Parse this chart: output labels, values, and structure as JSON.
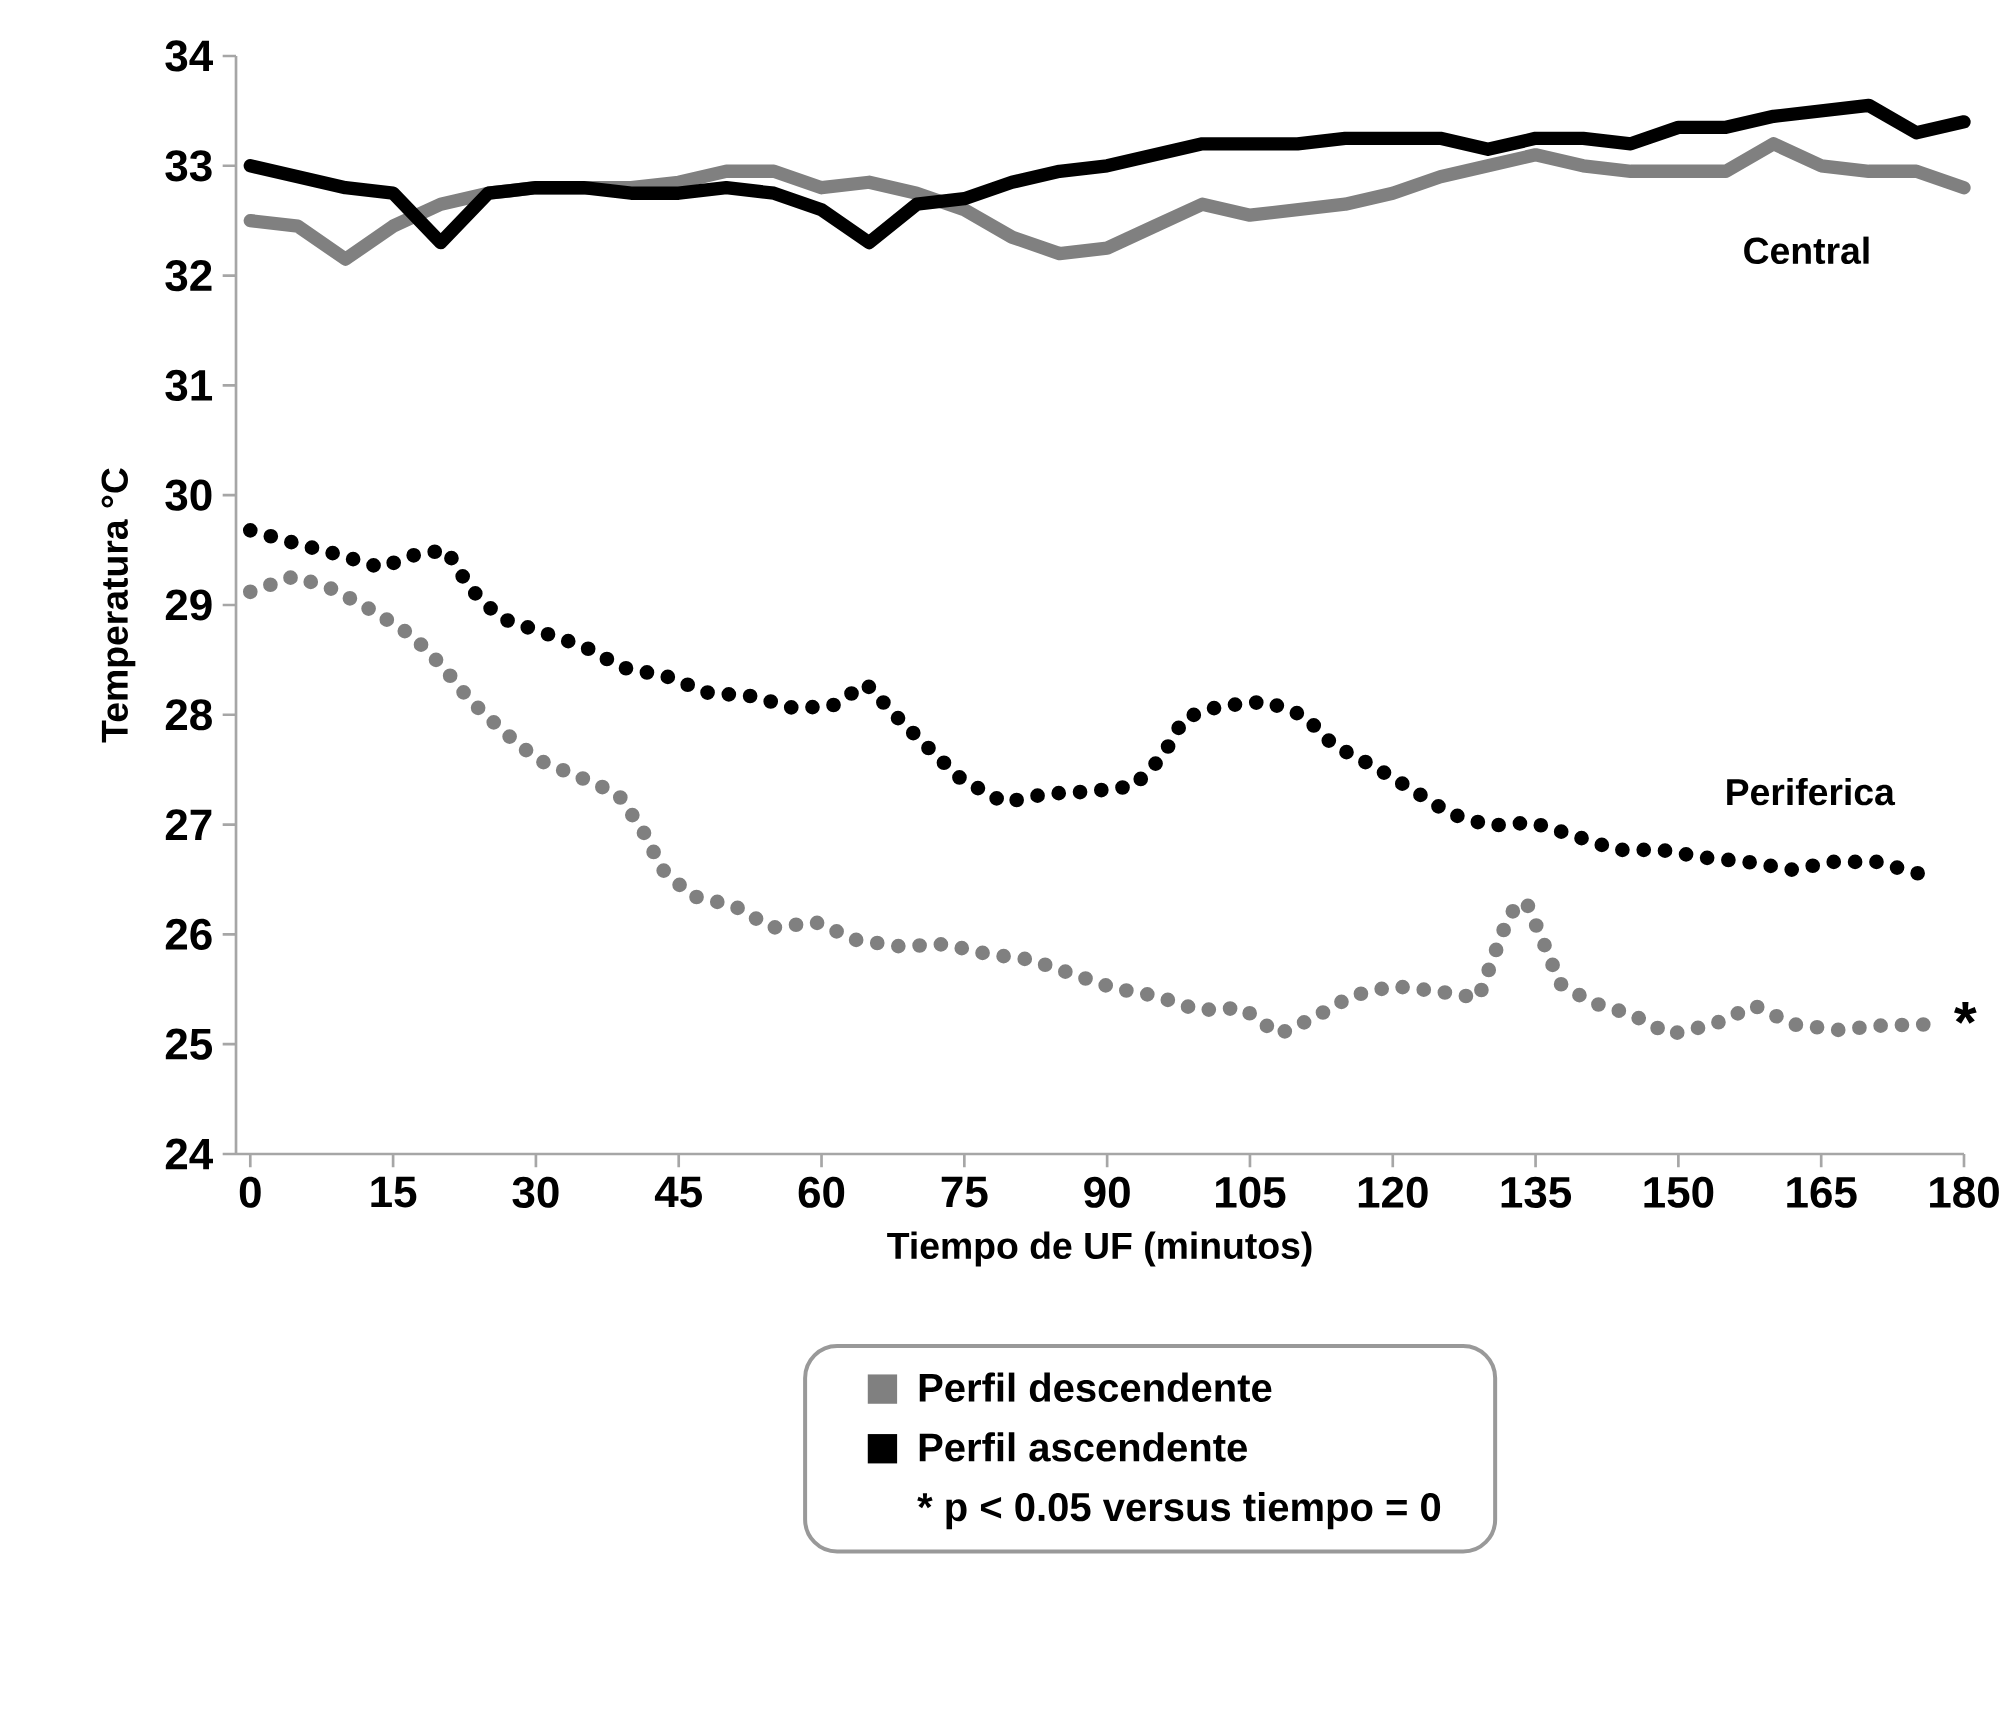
{
  "chart_data": {
    "type": "line",
    "xlabel": "Tiempo de UF (minutos)",
    "ylabel": "Temperatura  °C",
    "xlim": [
      -1.5,
      180
    ],
    "ylim": [
      24,
      34
    ],
    "xticks": [
      0,
      15,
      30,
      45,
      60,
      75,
      90,
      105,
      120,
      135,
      150,
      165,
      180
    ],
    "yticks": [
      24,
      25,
      26,
      27,
      28,
      29,
      30,
      31,
      32,
      33,
      34
    ],
    "legend": "bottom",
    "grid": false,
    "marker": "none",
    "series": [
      {
        "name": "Perfil descendente",
        "color": "#808080",
        "line_style": "solid",
        "x": [
          0,
          5,
          10,
          15,
          20,
          25,
          30,
          35,
          40,
          45,
          50,
          55,
          60,
          65,
          70,
          75,
          80,
          85,
          90,
          95,
          100,
          105,
          110,
          115,
          120,
          125,
          130,
          135,
          140,
          145,
          150,
          155,
          160,
          165,
          170,
          175,
          180
        ],
        "values": [
          32.5,
          32.45,
          32.15,
          32.45,
          32.65,
          32.75,
          32.8,
          32.8,
          32.8,
          32.85,
          32.95,
          32.95,
          32.8,
          32.85,
          32.75,
          32.6,
          32.35,
          32.2,
          32.25,
          32.45,
          32.65,
          32.55,
          32.6,
          32.65,
          32.75,
          32.9,
          33.0,
          33.1,
          33.0,
          32.95,
          32.95,
          32.95,
          33.2,
          33.0,
          32.95,
          32.95,
          32.8
        ]
      },
      {
        "name": "Perfil ascendente",
        "color": "#000000",
        "line_style": "solid",
        "x": [
          0,
          5,
          10,
          15,
          20,
          25,
          30,
          35,
          40,
          45,
          50,
          55,
          60,
          65,
          70,
          75,
          80,
          85,
          90,
          95,
          100,
          105,
          110,
          115,
          120,
          125,
          130,
          135,
          140,
          145,
          150,
          155,
          160,
          165,
          170,
          175,
          180
        ],
        "values": [
          33.0,
          32.9,
          32.8,
          32.75,
          32.3,
          32.75,
          32.8,
          32.8,
          32.75,
          32.75,
          32.8,
          32.75,
          32.6,
          32.3,
          32.65,
          32.7,
          32.85,
          32.95,
          33.0,
          33.1,
          33.2,
          33.2,
          33.2,
          33.25,
          33.25,
          33.25,
          33.15,
          33.25,
          33.25,
          33.2,
          33.35,
          33.35,
          33.45,
          33.5,
          33.55,
          33.3,
          33.4
        ]
      },
      {
        "color": "#808080",
        "line_style": "dotted",
        "x": [
          0,
          4.6,
          8.8,
          13,
          17,
          20.2,
          23.1,
          26.7,
          30.2,
          34.4,
          38.6,
          41.2,
          43.3,
          46.4,
          50.8,
          54.8,
          59.4,
          63.6,
          68.3,
          72.9,
          77.5,
          81.9,
          86.3,
          90.7,
          95.1,
          99.6,
          104.2,
          108,
          111.7,
          115.7,
          120.1,
          124.8,
          129,
          130.6,
          132.3,
          134,
          135.9,
          137.6,
          140.9,
          145.1,
          149.1,
          153.7,
          158,
          162.1,
          166.8,
          171.4,
          176
        ],
        "values": [
          29.12,
          29.26,
          29.14,
          28.94,
          28.72,
          28.44,
          28.13,
          27.84,
          27.59,
          27.44,
          27.28,
          26.95,
          26.59,
          26.35,
          26.26,
          26.06,
          26.11,
          25.95,
          25.89,
          25.91,
          25.82,
          25.77,
          25.64,
          25.51,
          25.44,
          25.31,
          25.33,
          25.09,
          25.24,
          25.44,
          25.53,
          25.48,
          25.42,
          25.8,
          26.19,
          26.3,
          25.91,
          25.55,
          25.38,
          25.27,
          25.09,
          25.18,
          25.35,
          25.18,
          25.13,
          25.17,
          25.18
        ]
      },
      {
        "color": "#000000",
        "line_style": "dotted",
        "x": [
          0,
          4.8,
          9.2,
          13.7,
          17.4,
          20.6,
          23.1,
          26.3,
          30.7,
          35.1,
          39.1,
          43.7,
          48.1,
          52.7,
          57.1,
          61.1,
          64.7,
          67.8,
          71.2,
          74.6,
          79.2,
          83.6,
          88,
          92.8,
          95.8,
          98.1,
          101.9,
          106.7,
          110.7,
          113.8,
          118,
          122,
          126,
          130.2,
          134.6,
          139,
          143.5,
          148.1,
          152.7,
          157.3,
          161.9,
          166.3,
          170.8,
          175.4
        ],
        "values": [
          29.68,
          29.56,
          29.46,
          29.34,
          29.46,
          29.5,
          29.15,
          28.88,
          28.75,
          28.62,
          28.43,
          28.35,
          28.2,
          28.17,
          28.06,
          28.08,
          28.28,
          27.99,
          27.7,
          27.42,
          27.2,
          27.28,
          27.3,
          27.35,
          27.62,
          27.97,
          28.08,
          28.12,
          27.99,
          27.72,
          27.53,
          27.32,
          27.1,
          26.99,
          27.02,
          26.9,
          26.77,
          26.77,
          26.7,
          26.66,
          26.59,
          26.66,
          26.66,
          26.55
        ]
      }
    ],
    "annotations": [
      "Central",
      "Periferica",
      "*",
      "* p < 0.05 versus tiempo = 0"
    ]
  }
}
